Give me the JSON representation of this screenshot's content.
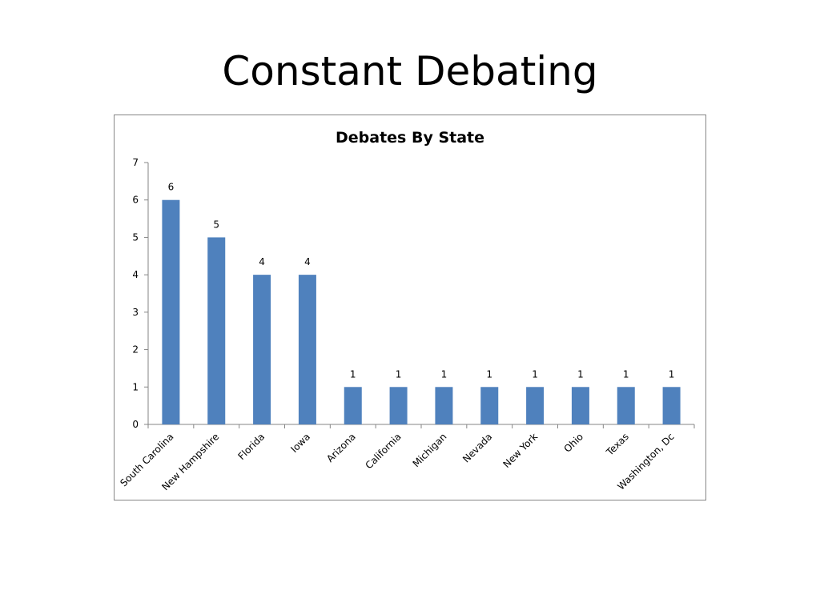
{
  "slide": {
    "title": "Constant Debating"
  },
  "chart_data": {
    "type": "bar",
    "title": "Debates By State",
    "xlabel": "",
    "ylabel": "",
    "categories": [
      "South Carolina",
      "New Hampshire",
      "Florida",
      "Iowa",
      "Arizona",
      "California",
      "Michigan",
      "Nevada",
      "New York",
      "Ohio",
      "Texas",
      "Washington, Dc"
    ],
    "values": [
      6,
      5,
      4,
      4,
      1,
      1,
      1,
      1,
      1,
      1,
      1,
      1
    ],
    "ylim": [
      0,
      7
    ],
    "yticks": [
      0,
      1,
      2,
      3,
      4,
      5,
      6,
      7
    ],
    "grid": false,
    "legend": "none",
    "data_labels": true,
    "bar_color": "#4F81BD",
    "axis_color": "#868686"
  }
}
